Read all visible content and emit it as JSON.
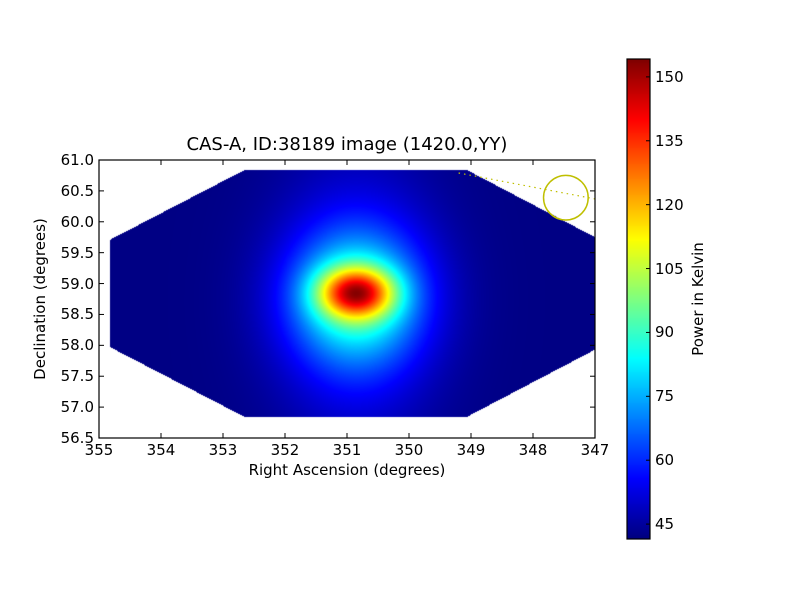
{
  "chart_data": {
    "type": "heatmap",
    "title": "CAS-A, ID:38189 image (1420.0,YY)",
    "xlabel": "Right Ascension (degrees)",
    "ylabel": "Declination (degrees)",
    "xlim": [
      355,
      347
    ],
    "ylim": [
      56.5,
      61.0
    ],
    "xticks": [
      "355",
      "354",
      "353",
      "352",
      "351",
      "350",
      "349",
      "348",
      "347"
    ],
    "yticks": [
      "56.5",
      "57.0",
      "57.5",
      "58.0",
      "58.5",
      "59.0",
      "59.5",
      "60.0",
      "60.5",
      "61.0"
    ],
    "colormap": "jet",
    "colorbar": {
      "label": "Power in Kelvin",
      "range": [
        41.5,
        154.2
      ],
      "ticks": [
        "45",
        "60",
        "75",
        "90",
        "105",
        "120",
        "135",
        "150"
      ]
    },
    "field_footprint_radec": [
      [
        354.82,
        59.71
      ],
      [
        352.65,
        60.84
      ],
      [
        349.07,
        60.84
      ],
      [
        347.0,
        59.75
      ],
      [
        347.0,
        57.93
      ],
      [
        349.07,
        56.84
      ],
      [
        352.65,
        56.84
      ],
      [
        354.82,
        57.97
      ]
    ],
    "background_level": 42,
    "sources": [
      {
        "ra": 350.85,
        "dec": 58.85,
        "peak": 154,
        "sigma_ra": 0.42,
        "sigma_dec": 0.28
      },
      {
        "ra": 350.85,
        "dec": 58.75,
        "peak": 38,
        "sigma_ra": 0.75,
        "sigma_dec": 0.75
      },
      {
        "ra": 350.85,
        "dec": 58.7,
        "peak": 14,
        "sigma_ra": 0.9,
        "sigma_dec": 1.6
      }
    ],
    "annotation_circle": {
      "ra": 347.47,
      "dec": 60.39,
      "radius_deg": 0.36,
      "color": "#bfbf00"
    },
    "annotation_line": {
      "from": [
        349.2,
        60.79
      ],
      "to": [
        347.0,
        60.37
      ],
      "color": "#bfbf00"
    }
  }
}
